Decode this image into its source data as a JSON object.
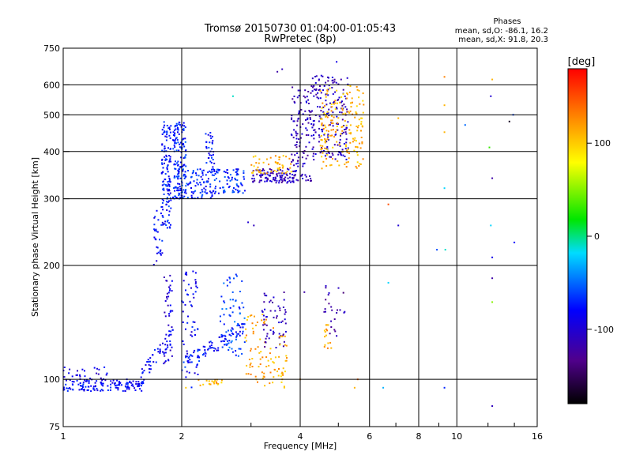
{
  "chart_data": {
    "type": "scatter",
    "title": "Tromsø 20150730 01:04:00-01:05:43",
    "subtitle": "RwPretec (8p)",
    "xlabel": "Frequency [MHz]",
    "ylabel": "Stationary phase Virtual Height [km]",
    "x_scale": "log",
    "y_scale": "log",
    "xlim": [
      1,
      16
    ],
    "ylim": [
      75,
      750
    ],
    "x_ticks": [
      1,
      2,
      4,
      6,
      8,
      10,
      16
    ],
    "x_tick_labels": [
      "1",
      "2",
      "4",
      "6",
      "8",
      "10",
      "16"
    ],
    "y_ticks": [
      75,
      100,
      200,
      300,
      400,
      500,
      600,
      750
    ],
    "y_tick_labels": [
      "75",
      "100",
      "200",
      "300",
      "400",
      "500",
      "600",
      "750"
    ],
    "grid": true,
    "stats": {
      "heading": "Phases",
      "line_o": "mean, sd,O: -86.1, 16.2",
      "line_x": "mean, sd,X:  91.8, 20.3"
    },
    "colorbar": {
      "label": "[deg]",
      "min": -180,
      "max": 180,
      "tick_values": [
        100,
        0,
        -100
      ],
      "tick_labels": [
        "100",
        "0",
        "-100"
      ],
      "colormap": "rainbow"
    },
    "clusters": [
      {
        "x": [
          1.0,
          1.6
        ],
        "h": [
          93,
          100
        ],
        "phase": -80,
        "n": 140,
        "shape": "flat"
      },
      {
        "x": [
          1.0,
          1.3
        ],
        "h": [
          98,
          108
        ],
        "phase": -90,
        "n": 30,
        "shape": "flat"
      },
      {
        "x": [
          1.55,
          1.9
        ],
        "h": [
          95,
          135
        ],
        "phase": -85,
        "n": 50,
        "shape": "rise"
      },
      {
        "x": [
          1.8,
          1.9
        ],
        "h": [
          110,
          200
        ],
        "phase": -95,
        "n": 40,
        "shape": "column"
      },
      {
        "x": [
          1.7,
          1.8
        ],
        "h": [
          200,
          290
        ],
        "phase": -80,
        "n": 30,
        "shape": "column"
      },
      {
        "x": [
          1.78,
          1.88
        ],
        "h": [
          250,
          480
        ],
        "phase": -75,
        "n": 130,
        "shape": "column"
      },
      {
        "x": [
          1.9,
          2.05
        ],
        "h": [
          300,
          480
        ],
        "phase": -70,
        "n": 150,
        "shape": "column"
      },
      {
        "x": [
          1.95,
          2.3
        ],
        "h": [
          300,
          360
        ],
        "phase": -70,
        "n": 70,
        "shape": "flat"
      },
      {
        "x": [
          2.3,
          2.42
        ],
        "h": [
          300,
          450
        ],
        "phase": -75,
        "n": 60,
        "shape": "column"
      },
      {
        "x": [
          2.4,
          2.9
        ],
        "h": [
          310,
          360
        ],
        "phase": -70,
        "n": 80,
        "shape": "flat"
      },
      {
        "x": [
          2.0,
          2.2
        ],
        "h": [
          95,
          195
        ],
        "phase": -85,
        "n": 60,
        "shape": "column"
      },
      {
        "x": [
          2.0,
          2.9
        ],
        "h": [
          105,
          140
        ],
        "phase": -75,
        "n": 90,
        "shape": "rise"
      },
      {
        "x": [
          2.5,
          2.9
        ],
        "h": [
          115,
          190
        ],
        "phase": -60,
        "n": 60,
        "shape": "column"
      },
      {
        "x": [
          2.2,
          2.55
        ],
        "h": [
          96,
          100
        ],
        "phase": 110,
        "n": 20,
        "shape": "flat"
      },
      {
        "x": [
          2.9,
          3.5
        ],
        "h": [
          96,
          150
        ],
        "phase": 115,
        "n": 70,
        "shape": "column"
      },
      {
        "x": [
          3.2,
          3.7
        ],
        "h": [
          120,
          170
        ],
        "phase": -115,
        "n": 60,
        "shape": "column"
      },
      {
        "x": [
          3.5,
          3.7
        ],
        "h": [
          95,
          130
        ],
        "phase": 110,
        "n": 25,
        "shape": "column"
      },
      {
        "x": [
          3.0,
          3.9
        ],
        "h": [
          330,
          360
        ],
        "phase": -110,
        "n": 110,
        "shape": "flat"
      },
      {
        "x": [
          3.0,
          3.8
        ],
        "h": [
          350,
          390
        ],
        "phase": 110,
        "n": 50,
        "shape": "flat"
      },
      {
        "x": [
          3.8,
          4.3
        ],
        "h": [
          330,
          600
        ],
        "phase": -110,
        "n": 120,
        "shape": "column"
      },
      {
        "x": [
          4.3,
          5.3
        ],
        "h": [
          380,
          640
        ],
        "phase": -110,
        "n": 180,
        "shape": "column"
      },
      {
        "x": [
          4.5,
          5.8
        ],
        "h": [
          360,
          600
        ],
        "phase": 110,
        "n": 180,
        "shape": "column"
      },
      {
        "x": [
          4.6,
          5.2
        ],
        "h": [
          130,
          180
        ],
        "phase": -120,
        "n": 25,
        "shape": "column"
      },
      {
        "x": [
          4.6,
          4.8
        ],
        "h": [
          120,
          140
        ],
        "phase": 115,
        "n": 15,
        "shape": "column"
      }
    ],
    "scattered_points": [
      {
        "x": 2.7,
        "h": 560,
        "phase": -10
      },
      {
        "x": 2.95,
        "h": 260,
        "phase": -100
      },
      {
        "x": 3.05,
        "h": 255,
        "phase": -110
      },
      {
        "x": 3.5,
        "h": 650,
        "phase": -120
      },
      {
        "x": 3.6,
        "h": 660,
        "phase": -110
      },
      {
        "x": 4.95,
        "h": 690,
        "phase": -90
      },
      {
        "x": 6.7,
        "h": 290,
        "phase": 150
      },
      {
        "x": 7.1,
        "h": 255,
        "phase": -100
      },
      {
        "x": 6.7,
        "h": 180,
        "phase": -20
      },
      {
        "x": 6.5,
        "h": 95,
        "phase": -30
      },
      {
        "x": 7.1,
        "h": 490,
        "phase": 110
      },
      {
        "x": 8.9,
        "h": 220,
        "phase": -60
      },
      {
        "x": 9.3,
        "h": 630,
        "phase": 130
      },
      {
        "x": 9.3,
        "h": 530,
        "phase": 110
      },
      {
        "x": 9.3,
        "h": 450,
        "phase": 110
      },
      {
        "x": 9.3,
        "h": 320,
        "phase": -20
      },
      {
        "x": 9.35,
        "h": 220,
        "phase": -10
      },
      {
        "x": 9.3,
        "h": 95,
        "phase": -70
      },
      {
        "x": 10.5,
        "h": 470,
        "phase": -50
      },
      {
        "x": 12.2,
        "h": 560,
        "phase": -100
      },
      {
        "x": 12.3,
        "h": 620,
        "phase": 110
      },
      {
        "x": 12.1,
        "h": 410,
        "phase": 30
      },
      {
        "x": 12.3,
        "h": 340,
        "phase": -120
      },
      {
        "x": 12.2,
        "h": 255,
        "phase": -20
      },
      {
        "x": 12.3,
        "h": 210,
        "phase": -90
      },
      {
        "x": 12.3,
        "h": 185,
        "phase": -120
      },
      {
        "x": 12.3,
        "h": 160,
        "phase": 50
      },
      {
        "x": 12.3,
        "h": 85,
        "phase": -110
      },
      {
        "x": 13.6,
        "h": 480,
        "phase": -170
      },
      {
        "x": 14.0,
        "h": 230,
        "phase": -80
      },
      {
        "x": 13.9,
        "h": 500,
        "phase": -60
      },
      {
        "x": 5.6,
        "h": 100,
        "phase": 140
      },
      {
        "x": 5.5,
        "h": 95,
        "phase": 110
      },
      {
        "x": 4.0,
        "h": 100,
        "phase": 120
      },
      {
        "x": 4.1,
        "h": 170,
        "phase": -120
      },
      {
        "x": 2.05,
        "h": 95,
        "phase": 100
      }
    ]
  }
}
